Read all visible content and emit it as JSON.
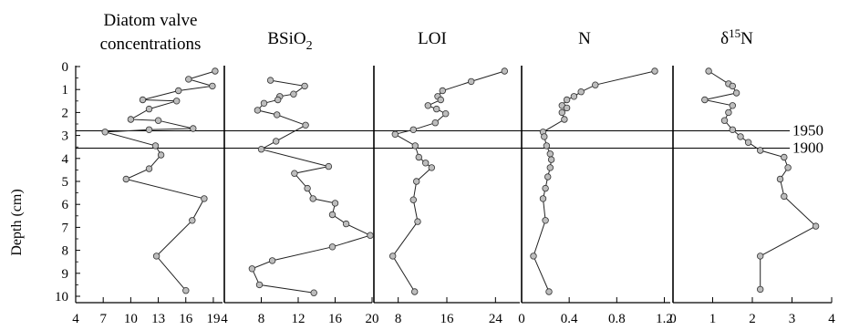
{
  "chart_data": {
    "type": "line",
    "y_axis": {
      "label": "Depth (cm)",
      "range": [
        0,
        10
      ],
      "ticks": [
        "0",
        "1",
        "2",
        "3",
        "4",
        "5",
        "6",
        "7",
        "8",
        "9",
        "10"
      ]
    },
    "reference_lines": [
      {
        "label": "1950",
        "depth": 2.8
      },
      {
        "label": "1900",
        "depth": 3.55
      }
    ],
    "panels": [
      {
        "title_lines": [
          "Diatom valve",
          "concentrations"
        ],
        "xlim": [
          4,
          20
        ],
        "xticks": [
          "4",
          "7",
          "10",
          "13",
          "16",
          "19"
        ],
        "values": [
          [
            19.2,
            0.2
          ],
          [
            16.3,
            0.55
          ],
          [
            18.9,
            0.85
          ],
          [
            15.2,
            1.05
          ],
          [
            11.3,
            1.45
          ],
          [
            15.0,
            1.5
          ],
          [
            12.0,
            1.85
          ],
          [
            10.0,
            2.3
          ],
          [
            13.0,
            2.35
          ],
          [
            16.8,
            2.7
          ],
          [
            12.0,
            2.75
          ],
          [
            7.2,
            2.85
          ],
          [
            12.7,
            3.45
          ],
          [
            13.3,
            3.85
          ],
          [
            12.0,
            4.45
          ],
          [
            9.5,
            4.9
          ],
          [
            18.0,
            5.75
          ],
          [
            16.7,
            6.7
          ],
          [
            12.8,
            8.25
          ],
          [
            16.0,
            9.75
          ]
        ]
      },
      {
        "title_lines": [
          "BSiO2"
        ],
        "title_main": "BSiO",
        "title_sub": "2",
        "xlim": [
          4,
          20
        ],
        "xticks": [
          "4",
          "8",
          "12",
          "16",
          "20"
        ],
        "values": [
          [
            9.0,
            0.6
          ],
          [
            12.7,
            0.85
          ],
          [
            11.5,
            1.2
          ],
          [
            10.0,
            1.3
          ],
          [
            9.8,
            1.45
          ],
          [
            8.3,
            1.6
          ],
          [
            7.6,
            1.9
          ],
          [
            9.7,
            2.1
          ],
          [
            12.8,
            2.55
          ],
          [
            9.6,
            3.25
          ],
          [
            8.0,
            3.6
          ],
          [
            15.3,
            4.35
          ],
          [
            11.6,
            4.65
          ],
          [
            13.0,
            5.3
          ],
          [
            13.6,
            5.75
          ],
          [
            16.0,
            5.95
          ],
          [
            15.7,
            6.45
          ],
          [
            17.2,
            6.85
          ],
          [
            19.8,
            7.35
          ],
          [
            15.7,
            7.85
          ],
          [
            9.2,
            8.45
          ],
          [
            7.0,
            8.8
          ],
          [
            7.8,
            9.5
          ],
          [
            13.7,
            9.85
          ]
        ]
      },
      {
        "title_lines": [
          "LOI"
        ],
        "xlim": [
          4,
          28
        ],
        "xticks": [
          "8",
          "16",
          "24"
        ],
        "values": [
          [
            25.5,
            0.2
          ],
          [
            20.0,
            0.65
          ],
          [
            15.3,
            1.05
          ],
          [
            14.5,
            1.3
          ],
          [
            15.0,
            1.45
          ],
          [
            12.9,
            1.7
          ],
          [
            14.3,
            1.85
          ],
          [
            15.8,
            2.05
          ],
          [
            14.1,
            2.45
          ],
          [
            10.5,
            2.75
          ],
          [
            7.5,
            2.95
          ],
          [
            10.8,
            3.45
          ],
          [
            11.4,
            3.95
          ],
          [
            12.5,
            4.2
          ],
          [
            13.5,
            4.4
          ],
          [
            11.0,
            5.0
          ],
          [
            10.5,
            5.8
          ],
          [
            11.2,
            6.75
          ],
          [
            7.1,
            8.25
          ],
          [
            10.7,
            9.8
          ]
        ]
      },
      {
        "title_lines": [
          "N"
        ],
        "xlim": [
          0,
          1.25
        ],
        "xticks": [
          "0",
          "0.4",
          "0.8",
          "1.2"
        ],
        "values": [
          [
            1.12,
            0.2
          ],
          [
            0.62,
            0.8
          ],
          [
            0.5,
            1.1
          ],
          [
            0.44,
            1.3
          ],
          [
            0.38,
            1.45
          ],
          [
            0.34,
            1.7
          ],
          [
            0.38,
            1.8
          ],
          [
            0.34,
            2.0
          ],
          [
            0.36,
            2.3
          ],
          [
            0.18,
            2.85
          ],
          [
            0.19,
            3.05
          ],
          [
            0.21,
            3.45
          ],
          [
            0.24,
            3.8
          ],
          [
            0.25,
            4.05
          ],
          [
            0.24,
            4.4
          ],
          [
            0.22,
            4.8
          ],
          [
            0.2,
            5.3
          ],
          [
            0.18,
            5.75
          ],
          [
            0.2,
            6.7
          ],
          [
            0.1,
            8.25
          ],
          [
            0.23,
            9.8
          ]
        ]
      },
      {
        "title_lines": [
          "δ15N"
        ],
        "title_main": "δ",
        "title_sup": "15",
        "title_end": "N",
        "xlim": [
          0,
          4
        ],
        "xticks": [
          "0",
          "1",
          "2",
          "3",
          "4"
        ],
        "values": [
          [
            0.9,
            0.2
          ],
          [
            1.4,
            0.75
          ],
          [
            1.5,
            0.85
          ],
          [
            1.6,
            1.15
          ],
          [
            0.8,
            1.45
          ],
          [
            1.5,
            1.7
          ],
          [
            1.4,
            2.0
          ],
          [
            1.3,
            2.35
          ],
          [
            1.5,
            2.75
          ],
          [
            1.7,
            3.05
          ],
          [
            1.9,
            3.3
          ],
          [
            2.2,
            3.65
          ],
          [
            2.8,
            3.95
          ],
          [
            2.9,
            4.4
          ],
          [
            2.7,
            4.9
          ],
          [
            2.8,
            5.65
          ],
          [
            3.6,
            6.95
          ],
          [
            2.2,
            8.25
          ],
          [
            2.2,
            9.7
          ]
        ]
      }
    ]
  }
}
